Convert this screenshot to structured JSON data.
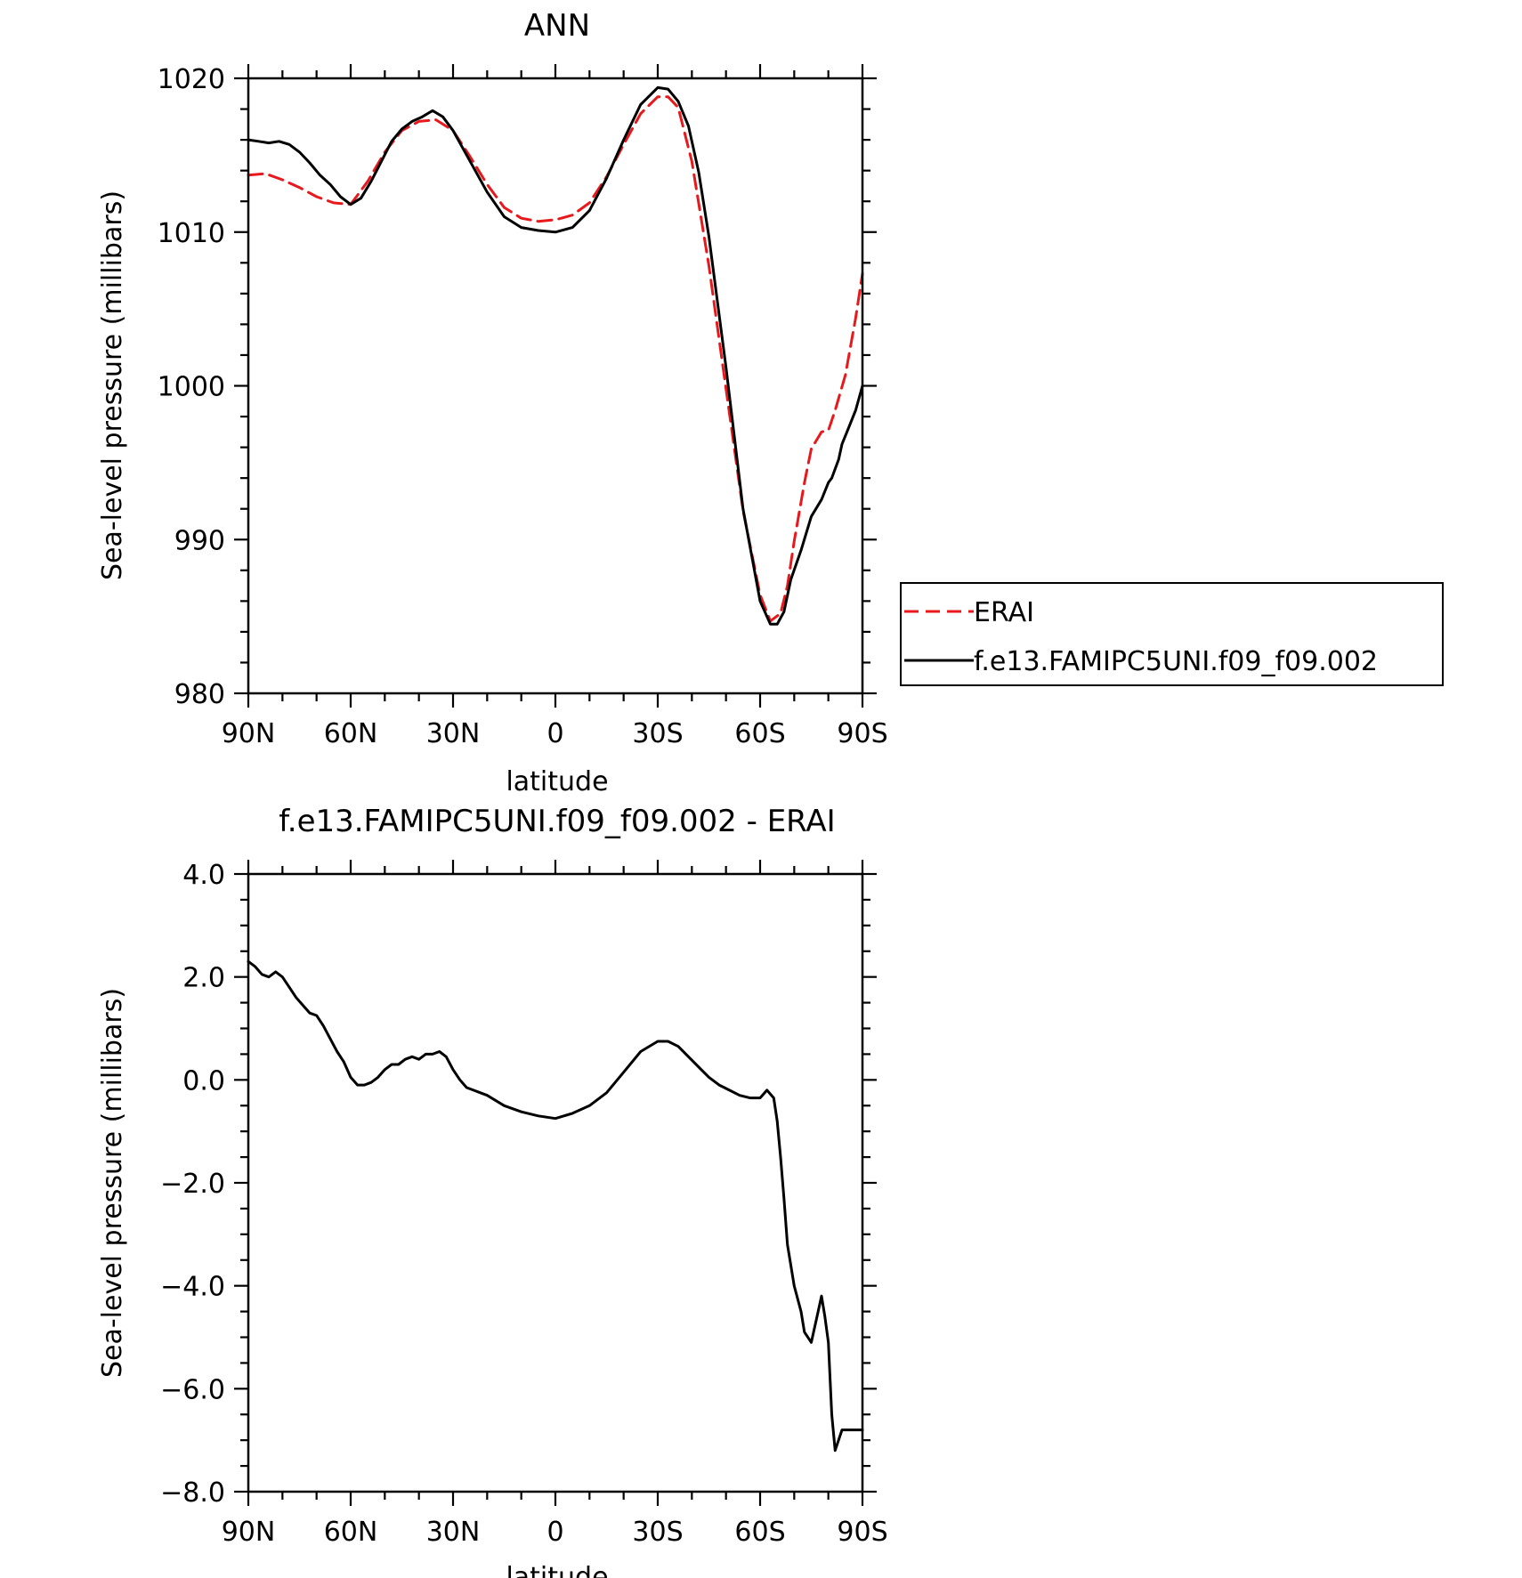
{
  "chart_data": [
    {
      "type": "line",
      "title": "ANN",
      "xlabel": "latitude",
      "ylabel": "Sea-level pressure (millibars)",
      "xlim": [
        90,
        -90
      ],
      "ylim": [
        980,
        1020
      ],
      "xticks": [
        90,
        60,
        30,
        0,
        -30,
        -60,
        -90
      ],
      "xtick_labels": [
        "90N",
        "60N",
        "30N",
        "0",
        "30S",
        "60S",
        "90S"
      ],
      "yticks": [
        980,
        990,
        1000,
        1010,
        1020
      ],
      "ytick_labels": [
        "980",
        "990",
        "1000",
        "1010",
        "1020"
      ],
      "legend_position": "right",
      "series": [
        {
          "name": "ERAI",
          "color": "#e8191c",
          "dash": "dashed",
          "x": [
            90,
            85,
            80,
            75,
            70,
            65,
            60,
            55,
            50,
            45,
            40,
            35,
            30,
            25,
            20,
            15,
            10,
            5,
            0,
            -5,
            -10,
            -15,
            -20,
            -25,
            -30,
            -33,
            -36,
            -40,
            -45,
            -50,
            -55,
            -60,
            -63,
            -66,
            -68,
            -70,
            -73,
            -75,
            -78,
            -80,
            -82,
            -85,
            -88,
            -90
          ],
          "y": [
            1013.7,
            1013.8,
            1013.4,
            1012.9,
            1012.3,
            1011.9,
            1011.8,
            1013.3,
            1015.2,
            1016.6,
            1017.2,
            1017.3,
            1016.6,
            1014.9,
            1013.1,
            1011.6,
            1010.9,
            1010.7,
            1010.8,
            1011.1,
            1011.9,
            1013.6,
            1015.7,
            1017.7,
            1018.8,
            1018.8,
            1018.1,
            1014.6,
            1007.8,
            999.8,
            991.9,
            986.4,
            984.7,
            985.2,
            987.0,
            989.9,
            993.7,
            995.9,
            997.0,
            997.1,
            998.4,
            1000.7,
            1004.4,
            1007.3
          ]
        },
        {
          "name": "f.e13.FAMIPC5UNI.f09_f09.002",
          "color": "#000000",
          "dash": "solid",
          "x": [
            90,
            87,
            84,
            81,
            78,
            75,
            72,
            69,
            66,
            63,
            60,
            57,
            54,
            51,
            48,
            45,
            42,
            39,
            36,
            33,
            30,
            25,
            20,
            15,
            10,
            5,
            0,
            -5,
            -10,
            -15,
            -20,
            -25,
            -30,
            -33,
            -36,
            -39,
            -42,
            -45,
            -50,
            -55,
            -60,
            -63,
            -65,
            -67,
            -69,
            -72,
            -75,
            -78,
            -80,
            -81,
            -83,
            -84,
            -86,
            -88,
            -90
          ],
          "y": [
            1016.0,
            1015.9,
            1015.8,
            1015.9,
            1015.7,
            1015.2,
            1014.5,
            1013.7,
            1013.1,
            1012.3,
            1011.8,
            1012.2,
            1013.3,
            1014.6,
            1015.9,
            1016.7,
            1017.2,
            1017.5,
            1017.9,
            1017.5,
            1016.6,
            1014.6,
            1012.6,
            1011.0,
            1010.3,
            1010.1,
            1010.0,
            1010.3,
            1011.4,
            1013.5,
            1016.0,
            1018.3,
            1019.4,
            1019.3,
            1018.5,
            1016.9,
            1013.9,
            1009.7,
            1001.2,
            992.0,
            986.0,
            984.5,
            984.5,
            985.3,
            987.4,
            989.3,
            991.5,
            992.6,
            993.7,
            994.0,
            995.2,
            996.2,
            997.3,
            998.4,
            1000.0
          ]
        }
      ]
    },
    {
      "type": "line",
      "title": "f.e13.FAMIPC5UNI.f09_f09.002 - ERAI",
      "xlabel": "latitude",
      "ylabel": "Sea-level pressure (millibars)",
      "xlim": [
        90,
        -90
      ],
      "ylim": [
        -8.0,
        4.0
      ],
      "xticks": [
        90,
        60,
        30,
        0,
        -30,
        -60,
        -90
      ],
      "xtick_labels": [
        "90N",
        "60N",
        "30N",
        "0",
        "30S",
        "60S",
        "90S"
      ],
      "yticks": [
        -8.0,
        -6.0,
        -4.0,
        -2.0,
        0.0,
        2.0,
        4.0
      ],
      "ytick_labels": [
        "−8.0",
        "−6.0",
        "−4.0",
        "−2.0",
        "0.0",
        "2.0",
        "4.0"
      ],
      "series": [
        {
          "color": "#000000",
          "dash": "solid",
          "x": [
            90,
            88,
            86,
            84,
            82,
            80,
            78,
            76,
            74,
            72,
            70,
            68,
            66,
            64,
            62,
            60,
            58,
            56,
            54,
            52,
            50,
            48,
            46,
            44,
            42,
            40,
            38,
            36,
            34,
            32,
            30,
            28,
            26,
            24,
            22,
            20,
            15,
            10,
            5,
            0,
            -5,
            -10,
            -15,
            -20,
            -25,
            -30,
            -33,
            -36,
            -39,
            -42,
            -45,
            -48,
            -51,
            -54,
            -57,
            -60,
            -62,
            -64,
            -65,
            -66,
            -67,
            -68,
            -70,
            -72,
            -73,
            -75,
            -77,
            -78,
            -79,
            -80,
            -81,
            -82,
            -84,
            -85,
            -86,
            -87,
            -88,
            -89,
            -90
          ],
          "y": [
            2.3,
            2.2,
            2.05,
            2.0,
            2.1,
            2.0,
            1.8,
            1.6,
            1.45,
            1.3,
            1.25,
            1.05,
            0.8,
            0.55,
            0.35,
            0.05,
            -0.1,
            -0.1,
            -0.05,
            0.05,
            0.2,
            0.3,
            0.3,
            0.4,
            0.45,
            0.4,
            0.5,
            0.5,
            0.55,
            0.45,
            0.2,
            0.0,
            -0.15,
            -0.2,
            -0.25,
            -0.3,
            -0.5,
            -0.62,
            -0.7,
            -0.75,
            -0.65,
            -0.5,
            -0.25,
            0.15,
            0.55,
            0.75,
            0.75,
            0.65,
            0.45,
            0.25,
            0.05,
            -0.1,
            -0.2,
            -0.3,
            -0.35,
            -0.35,
            -0.2,
            -0.35,
            -0.8,
            -1.5,
            -2.3,
            -3.2,
            -4.0,
            -4.5,
            -4.9,
            -5.1,
            -4.5,
            -4.2,
            -4.6,
            -5.1,
            -6.5,
            -7.2,
            -6.8,
            -6.8,
            -6.8,
            -6.8,
            -6.8,
            -6.8,
            -6.8
          ]
        }
      ]
    }
  ]
}
